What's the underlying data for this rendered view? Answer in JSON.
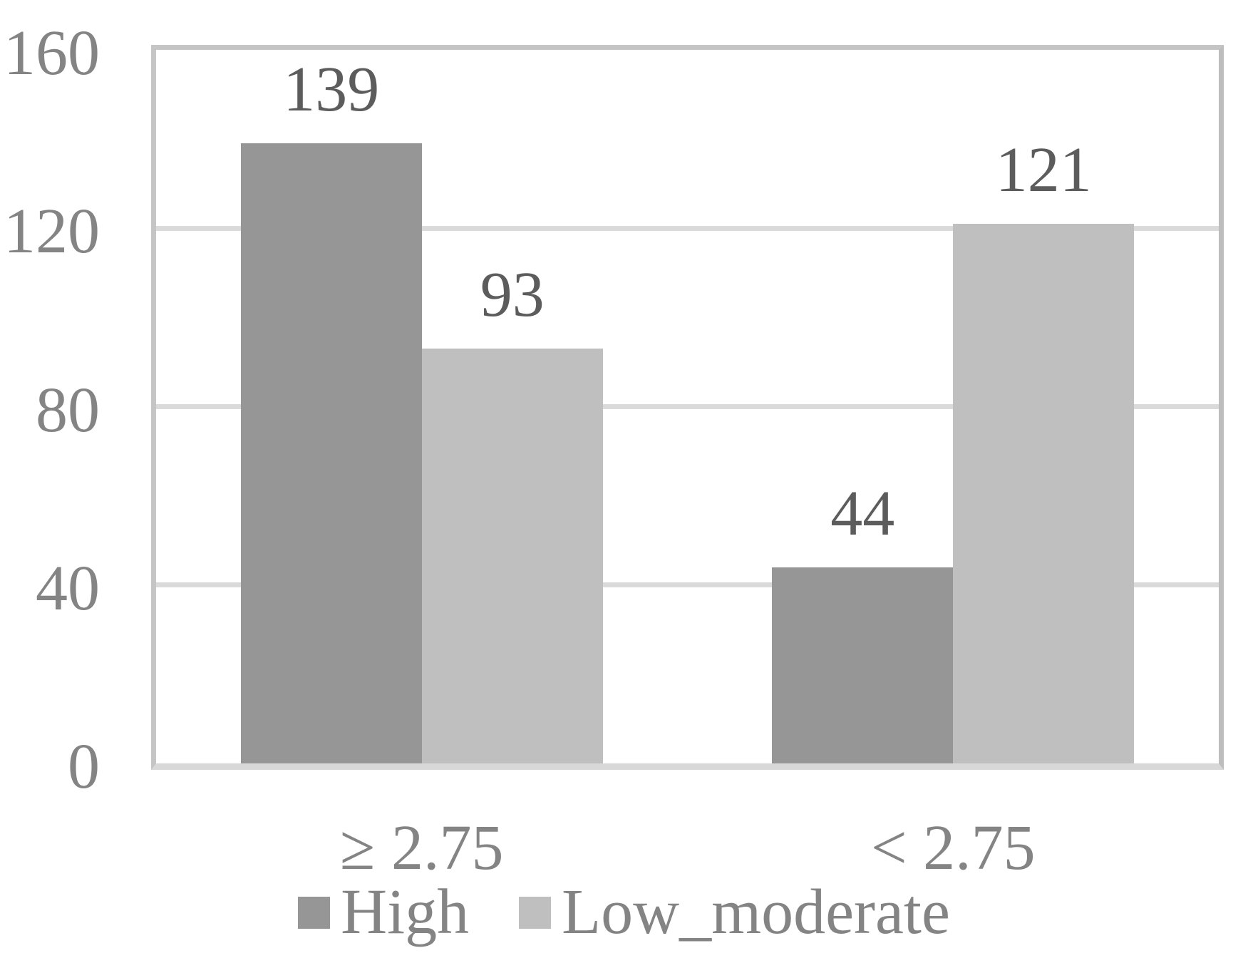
{
  "chart_data": {
    "type": "bar",
    "title": "",
    "xlabel": "",
    "ylabel": "",
    "categories": [
      "≥ 2.75",
      "< 2.75"
    ],
    "series": [
      {
        "name": "High",
        "values": [
          139,
          44
        ],
        "color": "#969696"
      },
      {
        "name": "Low_moderate",
        "values": [
          93,
          121
        ],
        "color": "#bfbfbf"
      }
    ],
    "data_labels": [
      [
        139,
        44
      ],
      [
        93,
        121
      ]
    ],
    "y_ticks": [
      0,
      40,
      80,
      120,
      160
    ],
    "ylim": [
      0,
      160
    ],
    "grid": true,
    "legend_position": "bottom"
  },
  "colors": {
    "background": "#ffffff",
    "gridline": "#dadada",
    "plot_border": "#c5c5c5",
    "axis_line": "#d8d8d8",
    "tick_label_text": "#848484",
    "category_label_text": "#848484",
    "legend_label_text": "#848484",
    "data_label_text": "#5c5c5c"
  }
}
